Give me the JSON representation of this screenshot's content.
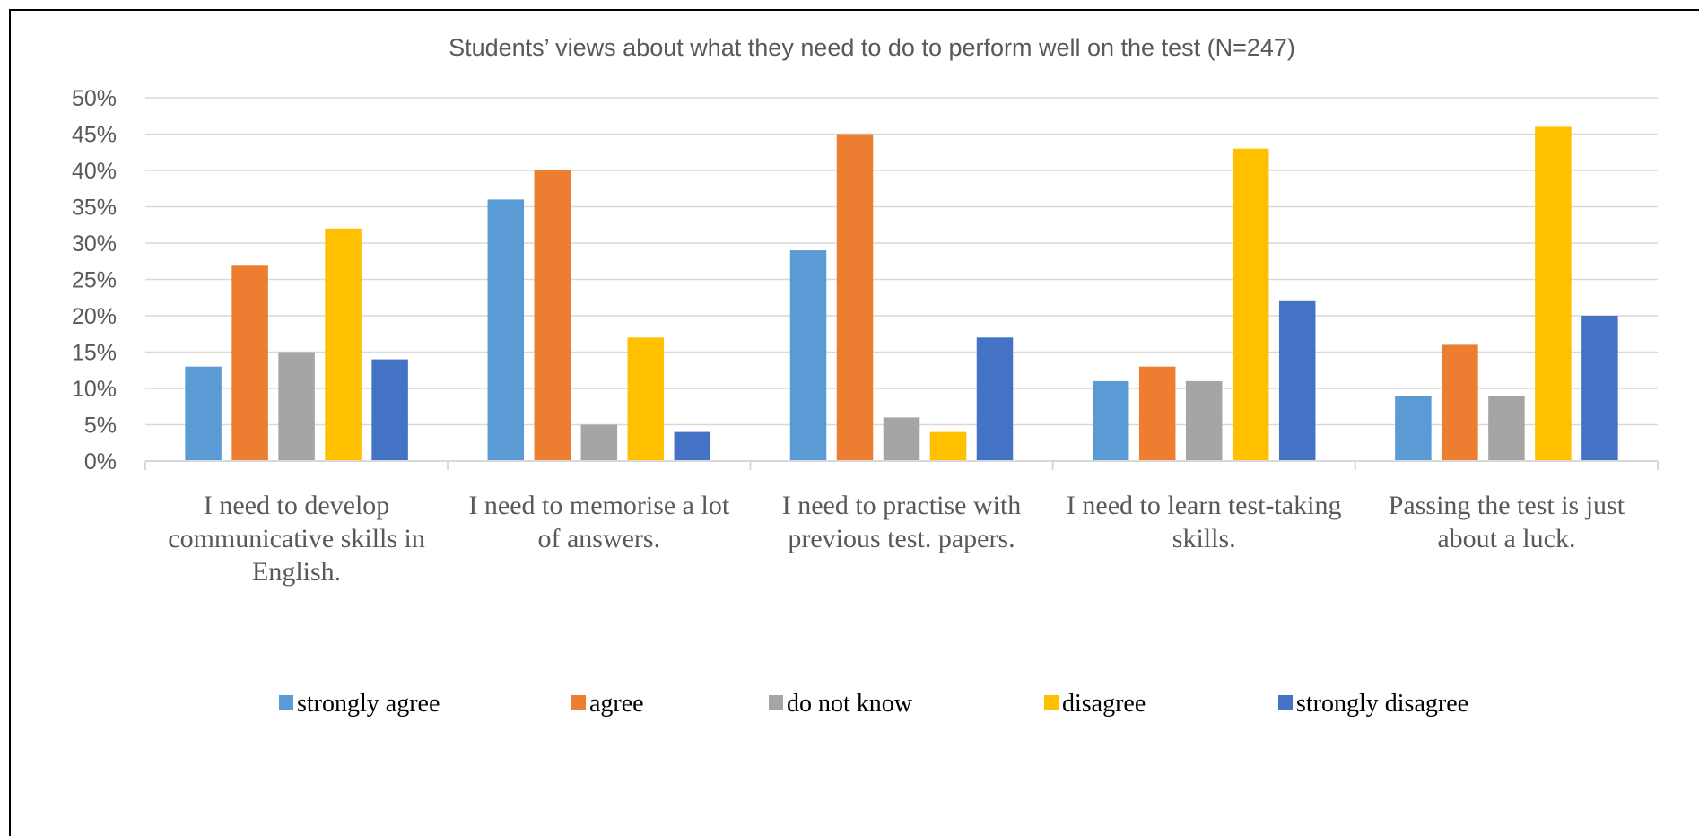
{
  "chart_data": {
    "type": "bar",
    "title": "Students’ views about what they need to do to perform well on the test   (N=247)",
    "xlabel": "",
    "ylabel": "",
    "ylim": [
      0,
      50
    ],
    "yticks": [
      0,
      5,
      10,
      15,
      20,
      25,
      30,
      35,
      40,
      45,
      50
    ],
    "ytick_labels": [
      "0%",
      "5%",
      "10%",
      "15%",
      "20%",
      "25%",
      "30%",
      "35%",
      "40%",
      "45%",
      "50%"
    ],
    "categories": [
      [
        "I need to develop",
        "communicative skills in",
        "English."
      ],
      [
        "I need to memorise a lot",
        "of answers."
      ],
      [
        "I need to practise with",
        "previous test. papers."
      ],
      [
        "I need to learn test-taking",
        "skills."
      ],
      [
        "Passing the test is just",
        "about a luck."
      ]
    ],
    "series": [
      {
        "name": "strongly agree",
        "color": "#5B9BD5",
        "values": [
          13,
          36,
          29,
          11,
          9
        ]
      },
      {
        "name": "agree",
        "color": "#ED7D31",
        "values": [
          27,
          40,
          45,
          13,
          16
        ]
      },
      {
        "name": "do not know",
        "color": "#A5A5A5",
        "values": [
          15,
          5,
          6,
          11,
          9
        ]
      },
      {
        "name": "disagree",
        "color": "#FFC000",
        "values": [
          32,
          17,
          4,
          43,
          46
        ]
      },
      {
        "name": "strongly disagree",
        "color": "#4472C4",
        "values": [
          14,
          4,
          17,
          22,
          20
        ]
      }
    ],
    "grid": true,
    "legend_position": "bottom",
    "colors": {
      "gridline": "#D9D9D9",
      "axis": "#D9D9D9",
      "text": "#595959"
    }
  }
}
